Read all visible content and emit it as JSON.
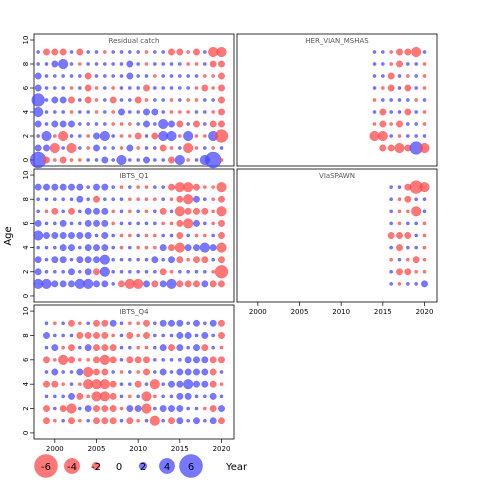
{
  "chart_data": {
    "type": "scatter",
    "chart_kind": "bubble residual plot",
    "ylabel": "Age",
    "xlabel": "Year",
    "y_ticks": [
      "0",
      "2",
      "4",
      "6",
      "8",
      "10"
    ],
    "x_ticks": [
      "2000",
      "2005",
      "2010",
      "2015",
      "2020"
    ],
    "xlim": [
      1997.5,
      2021.5
    ],
    "ylim": [
      -0.5,
      10.5
    ],
    "colors": {
      "positive": "#4a4aff",
      "negative": "#ff4a4a"
    },
    "legend": [
      {
        "label": "-6",
        "value": -6
      },
      {
        "label": "-4",
        "value": -4
      },
      {
        "label": "-2",
        "value": -2
      },
      {
        "label": "0",
        "value": 0
      },
      {
        "label": "2",
        "value": 2
      },
      {
        "label": "4",
        "value": 4
      },
      {
        "label": "6",
        "value": 6
      }
    ],
    "panels": [
      {
        "title": "Residual catch",
        "years": [
          1998,
          2020
        ],
        "ages": [
          0,
          9
        ],
        "values": [
          [
            5,
            -2,
            -1,
            -2,
            -1,
            -1,
            1,
            1,
            2,
            1,
            3,
            1,
            1,
            2,
            1,
            1,
            -2,
            3,
            -1,
            1,
            3,
            5,
            -1
          ],
          [
            2,
            2,
            -3,
            1,
            -3,
            1,
            -1,
            2,
            1,
            1,
            -1,
            2,
            -1,
            1,
            1,
            -2,
            -1,
            1,
            -3,
            -1,
            1,
            -1,
            1
          ],
          [
            1,
            3,
            -1,
            -3,
            1,
            1,
            -1,
            2,
            3,
            1,
            -1,
            -1,
            -2,
            1,
            -2,
            3,
            3,
            -1,
            3,
            -1,
            -1,
            3,
            -4
          ],
          [
            2,
            1,
            2,
            2,
            2,
            1,
            1,
            1,
            1,
            -1,
            -1,
            -1,
            1,
            2,
            1,
            3,
            2,
            -2,
            1,
            -2,
            1,
            -2,
            -2
          ],
          [
            3,
            1,
            1,
            1,
            -1,
            1,
            1,
            -1,
            1,
            -1,
            2,
            1,
            1,
            2,
            2,
            1,
            -1,
            -1,
            -1,
            1,
            1,
            -1,
            -2
          ],
          [
            4,
            1,
            2,
            2,
            -2,
            1,
            -2,
            -1,
            1,
            -2,
            1,
            1,
            -2,
            -1,
            1,
            1,
            -1,
            1,
            -1,
            -1,
            1,
            1,
            -2
          ],
          [
            2,
            1,
            1,
            1,
            -1,
            1,
            -2,
            -1,
            1,
            -1,
            1,
            1,
            1,
            -2,
            1,
            1,
            1,
            1,
            1,
            -1,
            -2,
            -1,
            -2
          ],
          [
            2,
            1,
            1,
            1,
            1,
            1,
            -2,
            1,
            1,
            1,
            1,
            2,
            1,
            1,
            -1,
            1,
            1,
            1,
            1,
            1,
            -1,
            -1,
            -2
          ],
          [
            1,
            1,
            2,
            3,
            1,
            -1,
            1,
            1,
            1,
            1,
            1,
            2,
            1,
            -1,
            1,
            1,
            1,
            1,
            -1,
            -1,
            1,
            -2,
            -2
          ],
          [
            1,
            -2,
            -2,
            -2,
            1,
            -2,
            1,
            1,
            -1,
            1,
            1,
            1,
            1,
            -1,
            1,
            1,
            -2,
            -2,
            -1,
            -2,
            1,
            -3,
            -3
          ]
        ]
      },
      {
        "title": "HER_VIAN_MSHAS",
        "years": [
          2014,
          2020
        ],
        "ages": [
          1,
          9
        ],
        "values": [
          [
            null,
            null,
            null,
            null,
            null,
            null,
            null
          ],
          [
            null,
            -2,
            -2,
            -3,
            -2,
            4,
            -3
          ],
          [
            -3,
            -3,
            1,
            -1,
            1,
            1,
            1
          ],
          [
            -1,
            -2,
            -1,
            -2,
            1,
            1,
            -1
          ],
          [
            1,
            -2,
            1,
            1,
            -2,
            1,
            -1
          ],
          [
            -1,
            1,
            1,
            1,
            1,
            -1,
            1
          ],
          [
            1,
            -1,
            -2,
            1,
            -2,
            1,
            -1
          ],
          [
            1,
            1,
            -2,
            1,
            -1,
            1,
            -1
          ],
          [
            1,
            1,
            -1,
            -2,
            1,
            1,
            -1
          ],
          [
            1,
            1,
            -1,
            -2,
            -2,
            -3,
            1
          ]
        ]
      },
      {
        "title": "IBTS_Q1",
        "years": [
          1998,
          2020
        ],
        "ages": [
          1,
          9
        ],
        "values": [
          [
            null,
            null,
            null,
            null,
            null,
            null,
            null,
            null,
            null,
            null,
            null,
            null,
            null,
            null,
            null,
            null,
            null,
            null,
            null,
            null,
            null,
            null,
            null
          ],
          [
            3,
            3,
            2,
            2,
            2,
            3,
            3,
            2,
            2,
            1,
            -2,
            -3,
            -3,
            2,
            -2,
            2,
            3,
            -2,
            -2,
            -2,
            2,
            -2,
            -2
          ],
          [
            2,
            1,
            1,
            1,
            2,
            1,
            2,
            -2,
            3,
            1,
            1,
            1,
            1,
            1,
            1,
            -2,
            -1,
            1,
            1,
            1,
            1,
            -1,
            -4
          ],
          [
            2,
            1,
            2,
            2,
            1,
            2,
            2,
            2,
            3,
            1,
            1,
            1,
            1,
            1,
            2,
            1,
            2,
            -2,
            -1,
            -2,
            -2,
            1,
            -2
          ],
          [
            1,
            1,
            1,
            2,
            2,
            1,
            2,
            2,
            2,
            1,
            -1,
            1,
            -1,
            -1,
            -1,
            2,
            -2,
            -3,
            2,
            2,
            3,
            2,
            -3
          ],
          [
            3,
            2,
            2,
            2,
            2,
            2,
            2,
            1,
            2,
            1,
            -1,
            -1,
            1,
            -1,
            -1,
            1,
            1,
            -2,
            1,
            -1,
            -1,
            1,
            -2
          ],
          [
            2,
            1,
            1,
            2,
            1,
            1,
            2,
            2,
            2,
            -1,
            1,
            1,
            1,
            1,
            1,
            -1,
            -1,
            -2,
            -3,
            2,
            1,
            -1,
            -2
          ],
          [
            1,
            -1,
            -2,
            1,
            -2,
            1,
            2,
            2,
            2,
            -1,
            1,
            -1,
            1,
            -1,
            1,
            -2,
            1,
            -3,
            -2,
            -2,
            -2,
            -1,
            -3
          ],
          [
            1,
            1,
            1,
            1,
            1,
            2,
            1,
            -2,
            1,
            1,
            1,
            -1,
            -1,
            -1,
            -1,
            1,
            -1,
            -2,
            -3,
            2,
            1,
            -1,
            -2
          ],
          [
            2,
            2,
            2,
            2,
            2,
            2,
            1,
            2,
            2,
            1,
            -1,
            1,
            -1,
            -1,
            1,
            1,
            -2,
            -3,
            -3,
            -2,
            -1,
            -1,
            -3
          ]
        ]
      },
      {
        "title": "VIaSPAWN",
        "years": [
          2015,
          2020
        ],
        "ages": [
          1,
          9
        ],
        "values": [
          [
            null,
            null,
            null,
            null,
            null,
            null
          ],
          [
            null,
            1,
            -1,
            1,
            1,
            2
          ],
          [
            null,
            1,
            -2,
            -2,
            -1,
            -1
          ],
          [
            null,
            -1,
            1,
            -1,
            -2,
            -1
          ],
          [
            null,
            1,
            -2,
            1,
            1,
            -1
          ],
          [
            null,
            -2,
            -2,
            -2,
            1,
            -1
          ],
          [
            null,
            1,
            -1,
            1,
            1,
            -1
          ],
          [
            null,
            1,
            -1,
            -1,
            -3,
            1
          ],
          [
            null,
            1,
            -1,
            -2,
            1,
            1
          ],
          [
            null,
            1,
            1,
            -2,
            -4,
            -3
          ]
        ]
      },
      {
        "title": "IBTS_Q4",
        "years": [
          1998,
          2020
        ],
        "ages": [
          0,
          9
        ],
        "values": [
          [
            null,
            null,
            null,
            null,
            null,
            null,
            null,
            null,
            null,
            null,
            null,
            null,
            null,
            null,
            null,
            null,
            null,
            null,
            null,
            null,
            null,
            null,
            null
          ],
          [
            null,
            -2,
            -1,
            1,
            -2,
            -1,
            1,
            -2,
            -2,
            -2,
            1,
            -2,
            -1,
            1,
            -3,
            1,
            -2,
            2,
            1,
            2,
            1,
            2,
            -2
          ],
          [
            null,
            -2,
            1,
            -2,
            -3,
            1,
            2,
            -2,
            -2,
            -2,
            -1,
            2,
            2,
            -3,
            1,
            2,
            2,
            2,
            1,
            1,
            -1,
            -2,
            2
          ],
          [
            null,
            1,
            1,
            1,
            2,
            -2,
            -1,
            -3,
            -3,
            -2,
            1,
            -1,
            1,
            -3,
            -1,
            1,
            1,
            2,
            2,
            1,
            1,
            2,
            1
          ],
          [
            null,
            -2,
            -2,
            -1,
            1,
            -1,
            -3,
            -3,
            -3,
            -2,
            1,
            1,
            -2,
            1,
            -3,
            1,
            2,
            2,
            3,
            2,
            2,
            -2,
            -1
          ],
          [
            null,
            1,
            2,
            1,
            1,
            2,
            -3,
            -2,
            -2,
            1,
            -1,
            1,
            -1,
            -2,
            1,
            2,
            1,
            2,
            2,
            2,
            2,
            -2,
            1
          ],
          [
            null,
            -2,
            -1,
            -3,
            -2,
            -1,
            -1,
            -2,
            -3,
            -2,
            1,
            -2,
            -2,
            -2,
            1,
            1,
            1,
            1,
            2,
            2,
            2,
            -2,
            -2
          ],
          [
            null,
            1,
            2,
            -1,
            -2,
            1,
            2,
            -2,
            -2,
            -2,
            1,
            1,
            -1,
            -1,
            1,
            2,
            -2,
            2,
            1,
            2,
            -2,
            1,
            -1
          ],
          [
            null,
            2,
            1,
            1,
            1,
            -2,
            -2,
            -2,
            -2,
            -1,
            1,
            -2,
            -1,
            -2,
            1,
            1,
            1,
            2,
            2,
            1,
            2,
            1,
            -2
          ],
          [
            null,
            1,
            -1,
            1,
            -2,
            -1,
            1,
            -2,
            -2,
            2,
            1,
            -1,
            -1,
            -2,
            1,
            2,
            2,
            2,
            1,
            2,
            1,
            2,
            -2
          ]
        ]
      }
    ]
  }
}
